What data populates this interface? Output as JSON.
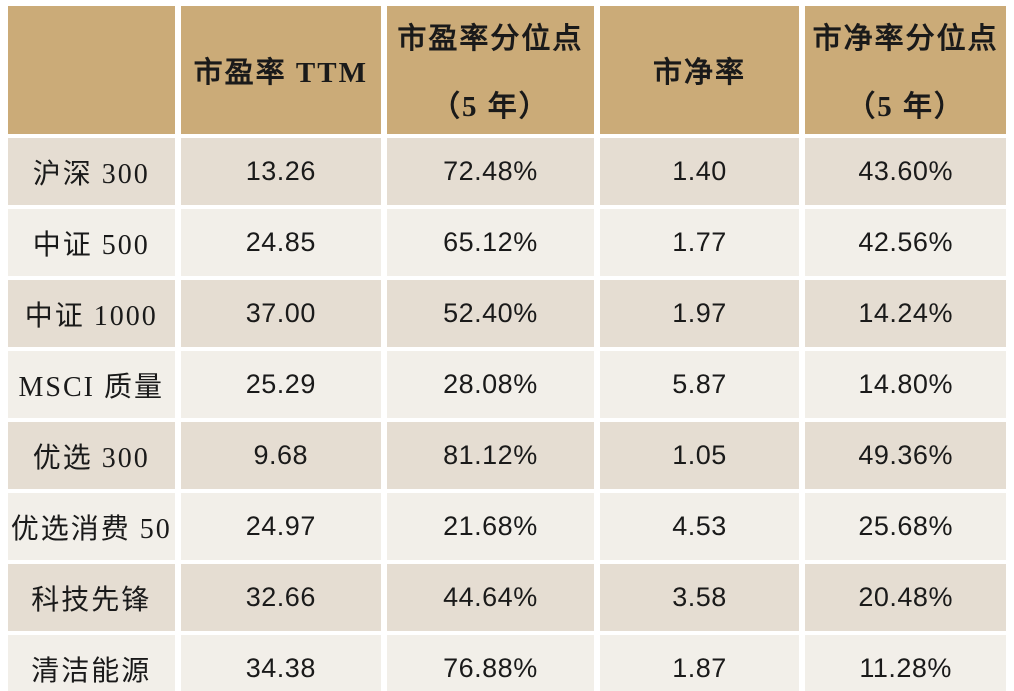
{
  "colors": {
    "header_bg": "#CBAB78",
    "row_dark": "#E5DDD2",
    "row_light": "#F2EFE9",
    "gap": "#FFFFFF",
    "text": "#1A1A1A"
  },
  "chart_data": {
    "type": "table",
    "corner_label": "",
    "columns": [
      {
        "label": "市盈率 TTM",
        "sublabel": ""
      },
      {
        "label": "市盈率分位点",
        "sublabel": "（5 年）"
      },
      {
        "label": "市净率",
        "sublabel": ""
      },
      {
        "label": "市净率分位点",
        "sublabel": "（5 年）"
      }
    ],
    "rows": [
      {
        "label": "沪深 300",
        "values": [
          "13.26",
          "72.48%",
          "1.40",
          "43.60%"
        ]
      },
      {
        "label": "中证 500",
        "values": [
          "24.85",
          "65.12%",
          "1.77",
          "42.56%"
        ]
      },
      {
        "label": "中证 1000",
        "values": [
          "37.00",
          "52.40%",
          "1.97",
          "14.24%"
        ]
      },
      {
        "label": "MSCI 质量",
        "values": [
          "25.29",
          "28.08%",
          "5.87",
          "14.80%"
        ]
      },
      {
        "label": "优选 300",
        "values": [
          "9.68",
          "81.12%",
          "1.05",
          "49.36%"
        ]
      },
      {
        "label": "优选消费 50",
        "values": [
          "24.97",
          "21.68%",
          "4.53",
          "25.68%"
        ]
      },
      {
        "label": "科技先锋",
        "values": [
          "32.66",
          "44.64%",
          "3.58",
          "20.48%"
        ]
      },
      {
        "label": "清洁能源",
        "values": [
          "34.38",
          "76.88%",
          "1.87",
          "11.28%"
        ]
      }
    ]
  }
}
